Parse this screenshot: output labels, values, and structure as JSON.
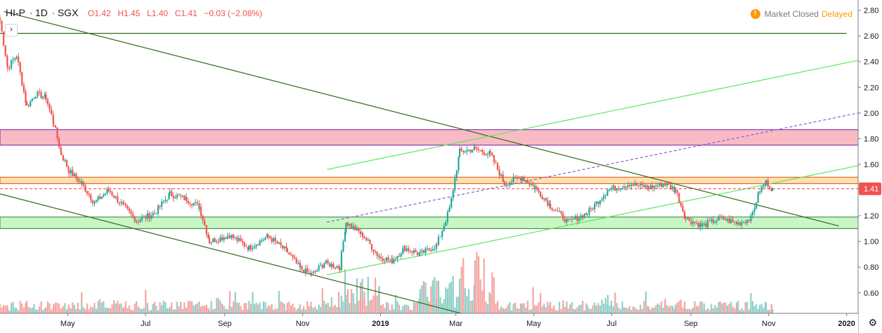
{
  "header": {
    "symbol": "HI-P",
    "resolution": "1D",
    "exchange": "SGX",
    "open": "O1.42",
    "high": "H1.45",
    "low": "L1.40",
    "close": "C1.41",
    "change": "−0.03 (−2.08%)"
  },
  "status": {
    "icon": "!",
    "market_label": "Market Closed",
    "delay_label": "Delayed",
    "accent": "#ff9800"
  },
  "last_price": "1.41",
  "chart_data": {
    "type": "candlestick",
    "y_axis": {
      "ylim": [
        0.44,
        2.88
      ],
      "ticks": [
        "2.80",
        "2.60",
        "2.40",
        "2.20",
        "2.00",
        "1.80",
        "1.60",
        "1.40",
        "1.20",
        "1.00",
        "0.80",
        "0.60"
      ]
    },
    "x_axis": {
      "start": "2018-03-09",
      "end": "2020-01-10",
      "labels": [
        {
          "text": "May",
          "date": "2018-05-01",
          "bold": false
        },
        {
          "text": "Jul",
          "date": "2018-07-01",
          "bold": false
        },
        {
          "text": "Sep",
          "date": "2018-09-01",
          "bold": false
        },
        {
          "text": "Nov",
          "date": "2018-11-01",
          "bold": false
        },
        {
          "text": "2019",
          "date": "2019-01-01",
          "bold": true
        },
        {
          "text": "Mar",
          "date": "2019-03-01",
          "bold": false
        },
        {
          "text": "May",
          "date": "2019-05-01",
          "bold": false
        },
        {
          "text": "Jul",
          "date": "2019-07-01",
          "bold": false
        },
        {
          "text": "Sep",
          "date": "2019-09-01",
          "bold": false
        },
        {
          "text": "Nov",
          "date": "2019-11-01",
          "bold": false
        },
        {
          "text": "2020",
          "date": "2020-01-01",
          "bold": true
        }
      ]
    },
    "price_path": [
      [
        "2018-03-09",
        2.72
      ],
      [
        "2018-03-15",
        2.35
      ],
      [
        "2018-03-22",
        2.45
      ],
      [
        "2018-03-30",
        2.05
      ],
      [
        "2018-04-06",
        2.15
      ],
      [
        "2018-04-14",
        2.12
      ],
      [
        "2018-04-20",
        1.92
      ],
      [
        "2018-04-26",
        1.68
      ],
      [
        "2018-05-02",
        1.55
      ],
      [
        "2018-05-12",
        1.45
      ],
      [
        "2018-05-22",
        1.3
      ],
      [
        "2018-06-02",
        1.4
      ],
      [
        "2018-06-14",
        1.27
      ],
      [
        "2018-06-24",
        1.16
      ],
      [
        "2018-07-08",
        1.22
      ],
      [
        "2018-07-20",
        1.37
      ],
      [
        "2018-08-02",
        1.33
      ],
      [
        "2018-08-12",
        1.27
      ],
      [
        "2018-08-20",
        1.0
      ],
      [
        "2018-09-05",
        1.05
      ],
      [
        "2018-09-20",
        0.95
      ],
      [
        "2018-10-05",
        1.04
      ],
      [
        "2018-10-20",
        0.92
      ],
      [
        "2018-10-30",
        0.79
      ],
      [
        "2018-11-08",
        0.74
      ],
      [
        "2018-11-18",
        0.83
      ],
      [
        "2018-11-30",
        0.8
      ],
      [
        "2018-12-05",
        1.15
      ],
      [
        "2018-12-18",
        1.05
      ],
      [
        "2018-12-31",
        0.88
      ],
      [
        "2019-01-10",
        0.85
      ],
      [
        "2019-01-20",
        0.95
      ],
      [
        "2019-02-01",
        0.9
      ],
      [
        "2019-02-14",
        0.97
      ],
      [
        "2019-02-24",
        1.25
      ],
      [
        "2019-03-04",
        1.7
      ],
      [
        "2019-03-16",
        1.72
      ],
      [
        "2019-03-28",
        1.68
      ],
      [
        "2019-04-08",
        1.45
      ],
      [
        "2019-04-22",
        1.5
      ],
      [
        "2019-05-02",
        1.42
      ],
      [
        "2019-05-14",
        1.28
      ],
      [
        "2019-05-28",
        1.15
      ],
      [
        "2019-06-12",
        1.22
      ],
      [
        "2019-06-28",
        1.4
      ],
      [
        "2019-07-15",
        1.45
      ],
      [
        "2019-07-30",
        1.42
      ],
      [
        "2019-08-12",
        1.45
      ],
      [
        "2019-08-20",
        1.4
      ],
      [
        "2019-08-28",
        1.18
      ],
      [
        "2019-09-10",
        1.12
      ],
      [
        "2019-09-24",
        1.18
      ],
      [
        "2019-10-08",
        1.14
      ],
      [
        "2019-10-18",
        1.18
      ],
      [
        "2019-10-25",
        1.4
      ],
      [
        "2019-10-30",
        1.46
      ],
      [
        "2019-11-04",
        1.41
      ]
    ],
    "zones": [
      {
        "name": "resistance-zone",
        "y1": 1.75,
        "y2": 1.87,
        "fill": "#f8bbc6",
        "stroke": "#7b1fa2"
      },
      {
        "name": "orange-zone",
        "y1": 1.45,
        "y2": 1.5,
        "fill": "#ffe0b2",
        "stroke": "#e65100"
      },
      {
        "name": "support-zone",
        "y1": 1.1,
        "y2": 1.19,
        "fill": "#c8f7c5",
        "stroke": "#2e7d32"
      }
    ],
    "lines": [
      {
        "name": "horizontal-resistance-line",
        "x1": "2018-03-09",
        "y1": 2.62,
        "x2": "2020-01-01",
        "y2": 2.62,
        "color": "#33691e",
        "dash": false
      },
      {
        "name": "downtrend-upper-line",
        "x1": "2018-03-12",
        "y1": 2.79,
        "x2": "2019-12-26",
        "y2": 1.12,
        "color": "#33691e",
        "dash": false
      },
      {
        "name": "downtrend-lower-line",
        "x1": "2018-03-09",
        "y1": 1.37,
        "x2": "2019-03-05",
        "y2": 0.44,
        "color": "#33691e",
        "dash": false
      },
      {
        "name": "uptrend-channel-upper",
        "x1": "2018-11-20",
        "y1": 1.56,
        "x2": "2020-01-10",
        "y2": 2.41,
        "color": "#5ee65e",
        "dash": false
      },
      {
        "name": "uptrend-channel-lower",
        "x1": "2018-11-20",
        "y1": 0.74,
        "x2": "2020-01-10",
        "y2": 1.59,
        "color": "#5ee65e",
        "dash": false
      },
      {
        "name": "uptrend-channel-mid",
        "x1": "2018-11-20",
        "y1": 1.15,
        "x2": "2020-01-10",
        "y2": 2.0,
        "color": "#8e5ac8",
        "dash": true
      },
      {
        "name": "last-price-line",
        "x1": "2018-03-09",
        "y1": 1.41,
        "x2": "2020-01-10",
        "y2": 1.41,
        "color": "#ef5350",
        "dash": true
      }
    ],
    "colors": {
      "up": "#26a69a",
      "down": "#ef5350",
      "up_vol": "#8fd0c9",
      "down_vol": "#f4a6a4",
      "vol_ma": "#e1bee7"
    }
  }
}
